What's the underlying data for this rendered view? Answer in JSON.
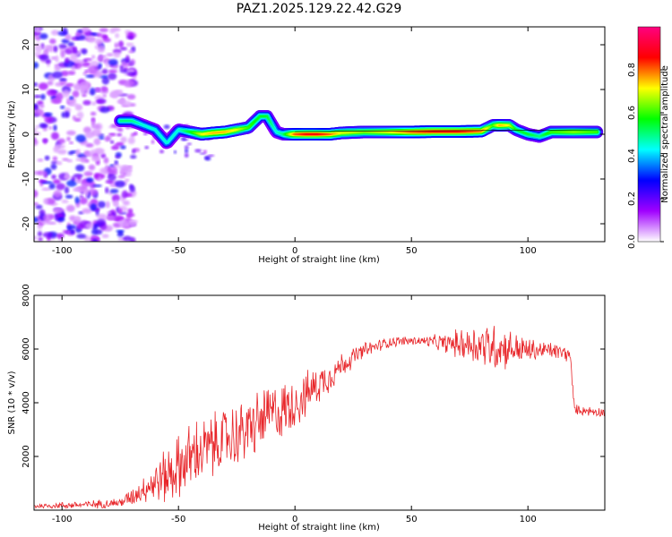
{
  "title": "PAZ1.2025.129.22.42.G29",
  "chart_data": [
    {
      "type": "heatmap",
      "xlabel": "Height of straight line (km)",
      "ylabel": "Frequency (Hz)",
      "xlim": [
        -112,
        133
      ],
      "ylim": [
        -24,
        24
      ],
      "xticks": [
        -100,
        -50,
        0,
        50,
        100
      ],
      "xtick_labels": [
        "-100",
        "-50",
        "0",
        "50",
        "100"
      ],
      "yticks": [
        -20,
        -10,
        0,
        10,
        20
      ],
      "ytick_labels": [
        "-20",
        "-10",
        "0",
        "10",
        "20"
      ],
      "colorbar": {
        "label": "Normalized spectral amplitude",
        "range": [
          0,
          1
        ],
        "ticks": [
          0.0,
          0.2,
          0.4,
          0.6,
          0.8
        ],
        "tick_labels": [
          "0.0",
          "0.2",
          "0.4",
          "0.6",
          "0.8"
        ],
        "colors": [
          "#ffffff",
          "#a000ff",
          "#0000ff",
          "#00ffff",
          "#00ff00",
          "#ffff00",
          "#ff0000",
          "#ff0080"
        ]
      },
      "ridge": {
        "x": [
          -75,
          -70,
          -65,
          -60,
          -55,
          -50,
          -45,
          -40,
          -35,
          -30,
          -25,
          -20,
          -15,
          -12,
          -8,
          -5,
          0,
          5,
          10,
          15,
          20,
          30,
          40,
          50,
          60,
          70,
          80,
          85,
          88,
          92,
          95,
          100,
          105,
          110,
          120,
          130
        ],
        "y": [
          3,
          3,
          2,
          1,
          -2,
          1,
          0.5,
          0,
          0.3,
          0.5,
          1,
          1.5,
          4,
          4,
          0.5,
          0,
          0,
          0,
          0,
          0,
          0.3,
          0.5,
          0.5,
          0.5,
          0.6,
          0.6,
          0.7,
          2,
          2,
          2,
          1,
          0,
          -0.5,
          0.5,
          0.5,
          0.5
        ],
        "amplitude": [
          0.5,
          0.5,
          0.45,
          0.45,
          0.45,
          0.45,
          0.55,
          0.7,
          0.75,
          0.75,
          0.7,
          0.6,
          0.55,
          0.55,
          0.45,
          0.5,
          0.8,
          0.85,
          0.85,
          0.8,
          0.7,
          0.65,
          0.7,
          0.8,
          0.85,
          0.85,
          0.8,
          0.6,
          0.75,
          0.7,
          0.55,
          0.55,
          0.5,
          0.6,
          0.65,
          0.6
        ]
      },
      "noise_region": {
        "x_range": [
          -112,
          -75
        ],
        "y_range": [
          -24,
          24
        ],
        "amplitude_range": [
          0.05,
          0.3
        ]
      }
    },
    {
      "type": "line",
      "xlabel": "Height of straight line (km)",
      "ylabel": "SNR (10 * v/v)",
      "xlim": [
        -112,
        133
      ],
      "ylim": [
        0,
        8000
      ],
      "xticks": [
        -100,
        -50,
        0,
        50,
        100
      ],
      "xtick_labels": [
        "-100",
        "-50",
        "0",
        "50",
        "100"
      ],
      "yticks": [
        2000,
        4000,
        6000,
        8000
      ],
      "ytick_labels": [
        "2000",
        "4000",
        "6000",
        "8000"
      ],
      "color": "#e8262a",
      "trend": {
        "x": [
          -112,
          -90,
          -75,
          -70,
          -65,
          -60,
          -55,
          -50,
          -45,
          -40,
          -35,
          -30,
          -25,
          -20,
          -15,
          -10,
          -5,
          0,
          5,
          10,
          15,
          20,
          25,
          30,
          35,
          40,
          45,
          50,
          55,
          60,
          65,
          70,
          75,
          80,
          85,
          90,
          95,
          100,
          105,
          110,
          115,
          118,
          120,
          125,
          133
        ],
        "y": [
          150,
          200,
          280,
          500,
          800,
          1050,
          1300,
          1600,
          1950,
          2200,
          2400,
          2650,
          2800,
          3000,
          3300,
          3600,
          3700,
          4000,
          4300,
          4700,
          5000,
          5400,
          5700,
          5950,
          6100,
          6250,
          6300,
          6300,
          6300,
          6250,
          6200,
          6200,
          6200,
          6150,
          6100,
          6050,
          6000,
          5950,
          5950,
          5950,
          5850,
          5800,
          3750,
          3700,
          3650
        ]
      },
      "noise_amplitude": {
        "x": [
          -112,
          -75,
          -65,
          -55,
          -45,
          -35,
          -25,
          -15,
          -5,
          5,
          15,
          25,
          35,
          45,
          55,
          65,
          75,
          85,
          95,
          105,
          115,
          118,
          120,
          133
        ],
        "y": [
          80,
          150,
          400,
          900,
          1100,
          1000,
          1000,
          1000,
          900,
          700,
          500,
          300,
          200,
          150,
          150,
          300,
          600,
          800,
          500,
          300,
          250,
          250,
          150,
          150
        ]
      }
    }
  ]
}
